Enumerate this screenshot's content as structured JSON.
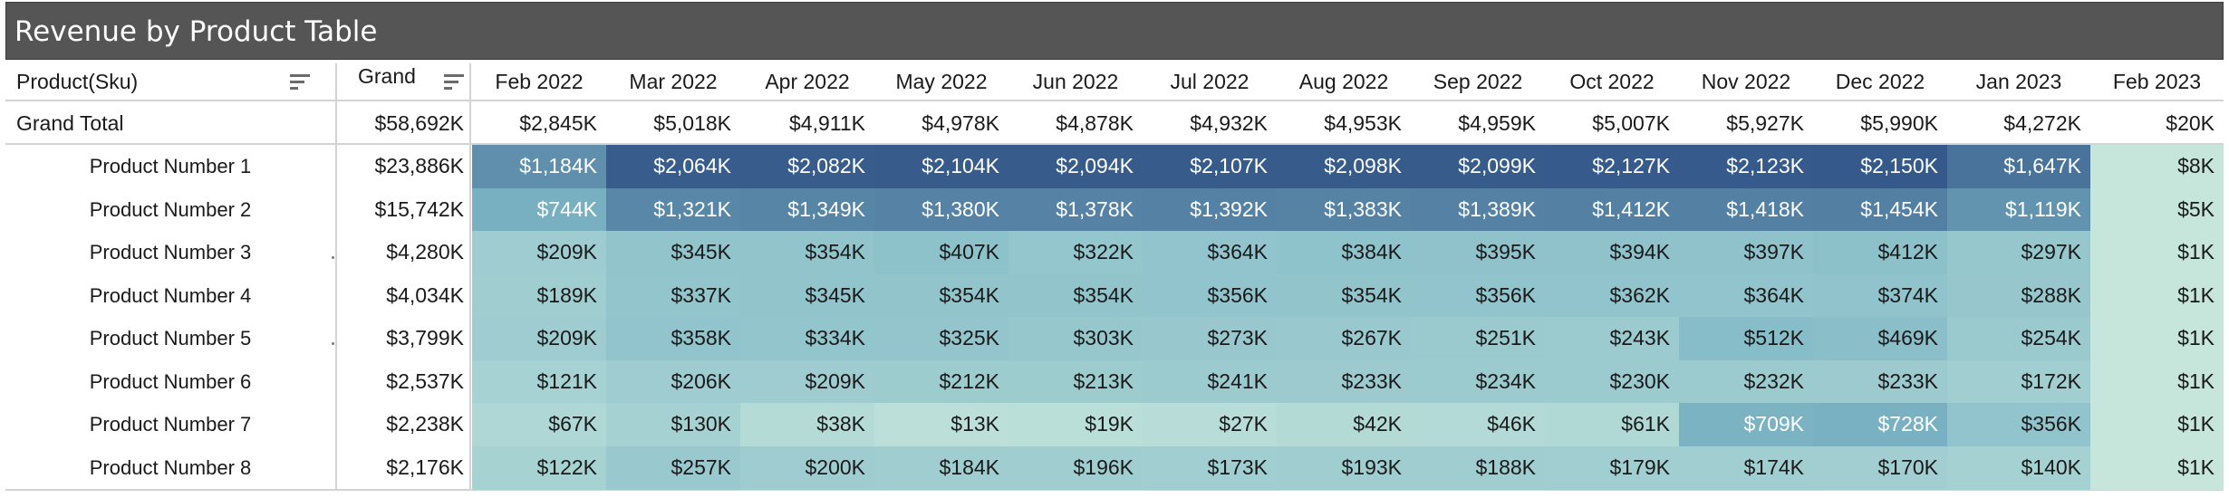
{
  "title": "Revenue by Product Table",
  "headers": {
    "product": "Product(Sku)",
    "grand": "Grand",
    "months": [
      "Feb 2022",
      "Mar 2022",
      "Apr 2022",
      "May 2022",
      "Jun 2022",
      "Jul 2022",
      "Aug 2022",
      "Sep 2022",
      "Oct 2022",
      "Nov 2022",
      "Dec 2022",
      "Jan 2023",
      "Feb 2023"
    ]
  },
  "grand_total": {
    "label": "Grand Total",
    "grand": "$58,692K",
    "values": [
      "$2,845K",
      "$5,018K",
      "$4,911K",
      "$4,978K",
      "$4,878K",
      "$4,932K",
      "$4,953K",
      "$4,959K",
      "$5,007K",
      "$5,927K",
      "$5,990K",
      "$4,272K",
      "$20K"
    ]
  },
  "rows": [
    {
      "label": "Product Number 1",
      "grand": "$23,886K",
      "values": [
        "$1,184K",
        "$2,064K",
        "$2,082K",
        "$2,104K",
        "$2,094K",
        "$2,107K",
        "$2,098K",
        "$2,099K",
        "$2,127K",
        "$2,123K",
        "$2,150K",
        "$1,647K",
        "$8K"
      ]
    },
    {
      "label": "Product Number 2",
      "grand": "$15,742K",
      "values": [
        "$744K",
        "$1,321K",
        "$1,349K",
        "$1,380K",
        "$1,378K",
        "$1,392K",
        "$1,383K",
        "$1,389K",
        "$1,412K",
        "$1,418K",
        "$1,454K",
        "$1,119K",
        "$5K"
      ]
    },
    {
      "label": "Product Number 3",
      "grand": "$4,280K",
      "values": [
        "$209K",
        "$345K",
        "$354K",
        "$407K",
        "$322K",
        "$364K",
        "$384K",
        "$395K",
        "$394K",
        "$397K",
        "$412K",
        "$297K",
        "$1K"
      ]
    },
    {
      "label": "Product Number 4",
      "grand": "$4,034K",
      "values": [
        "$189K",
        "$337K",
        "$345K",
        "$354K",
        "$354K",
        "$356K",
        "$354K",
        "$356K",
        "$362K",
        "$364K",
        "$374K",
        "$288K",
        "$1K"
      ]
    },
    {
      "label": "Product Number 5",
      "grand": "$3,799K",
      "values": [
        "$209K",
        "$358K",
        "$334K",
        "$325K",
        "$303K",
        "$273K",
        "$267K",
        "$251K",
        "$243K",
        "$512K",
        "$469K",
        "$254K",
        "$1K"
      ]
    },
    {
      "label": "Product Number 6",
      "grand": "$2,537K",
      "values": [
        "$121K",
        "$206K",
        "$209K",
        "$212K",
        "$213K",
        "$241K",
        "$233K",
        "$234K",
        "$230K",
        "$232K",
        "$233K",
        "$172K",
        "$1K"
      ]
    },
    {
      "label": "Product Number 7",
      "grand": "$2,238K",
      "values": [
        "$67K",
        "$130K",
        "$38K",
        "$13K",
        "$19K",
        "$27K",
        "$42K",
        "$46K",
        "$61K",
        "$709K",
        "$728K",
        "$356K",
        "$1K"
      ]
    },
    {
      "label": "Product Number 8",
      "grand": "$2,176K",
      "values": [
        "$122K",
        "$257K",
        "$200K",
        "$184K",
        "$196K",
        "$173K",
        "$193K",
        "$188K",
        "$179K",
        "$174K",
        "$170K",
        "$140K",
        "$1K"
      ]
    }
  ],
  "colors": {
    "header_bar": "#555555",
    "low": "#c6e6dc",
    "mid": "#7fb8c6",
    "high": "#35598a"
  }
}
